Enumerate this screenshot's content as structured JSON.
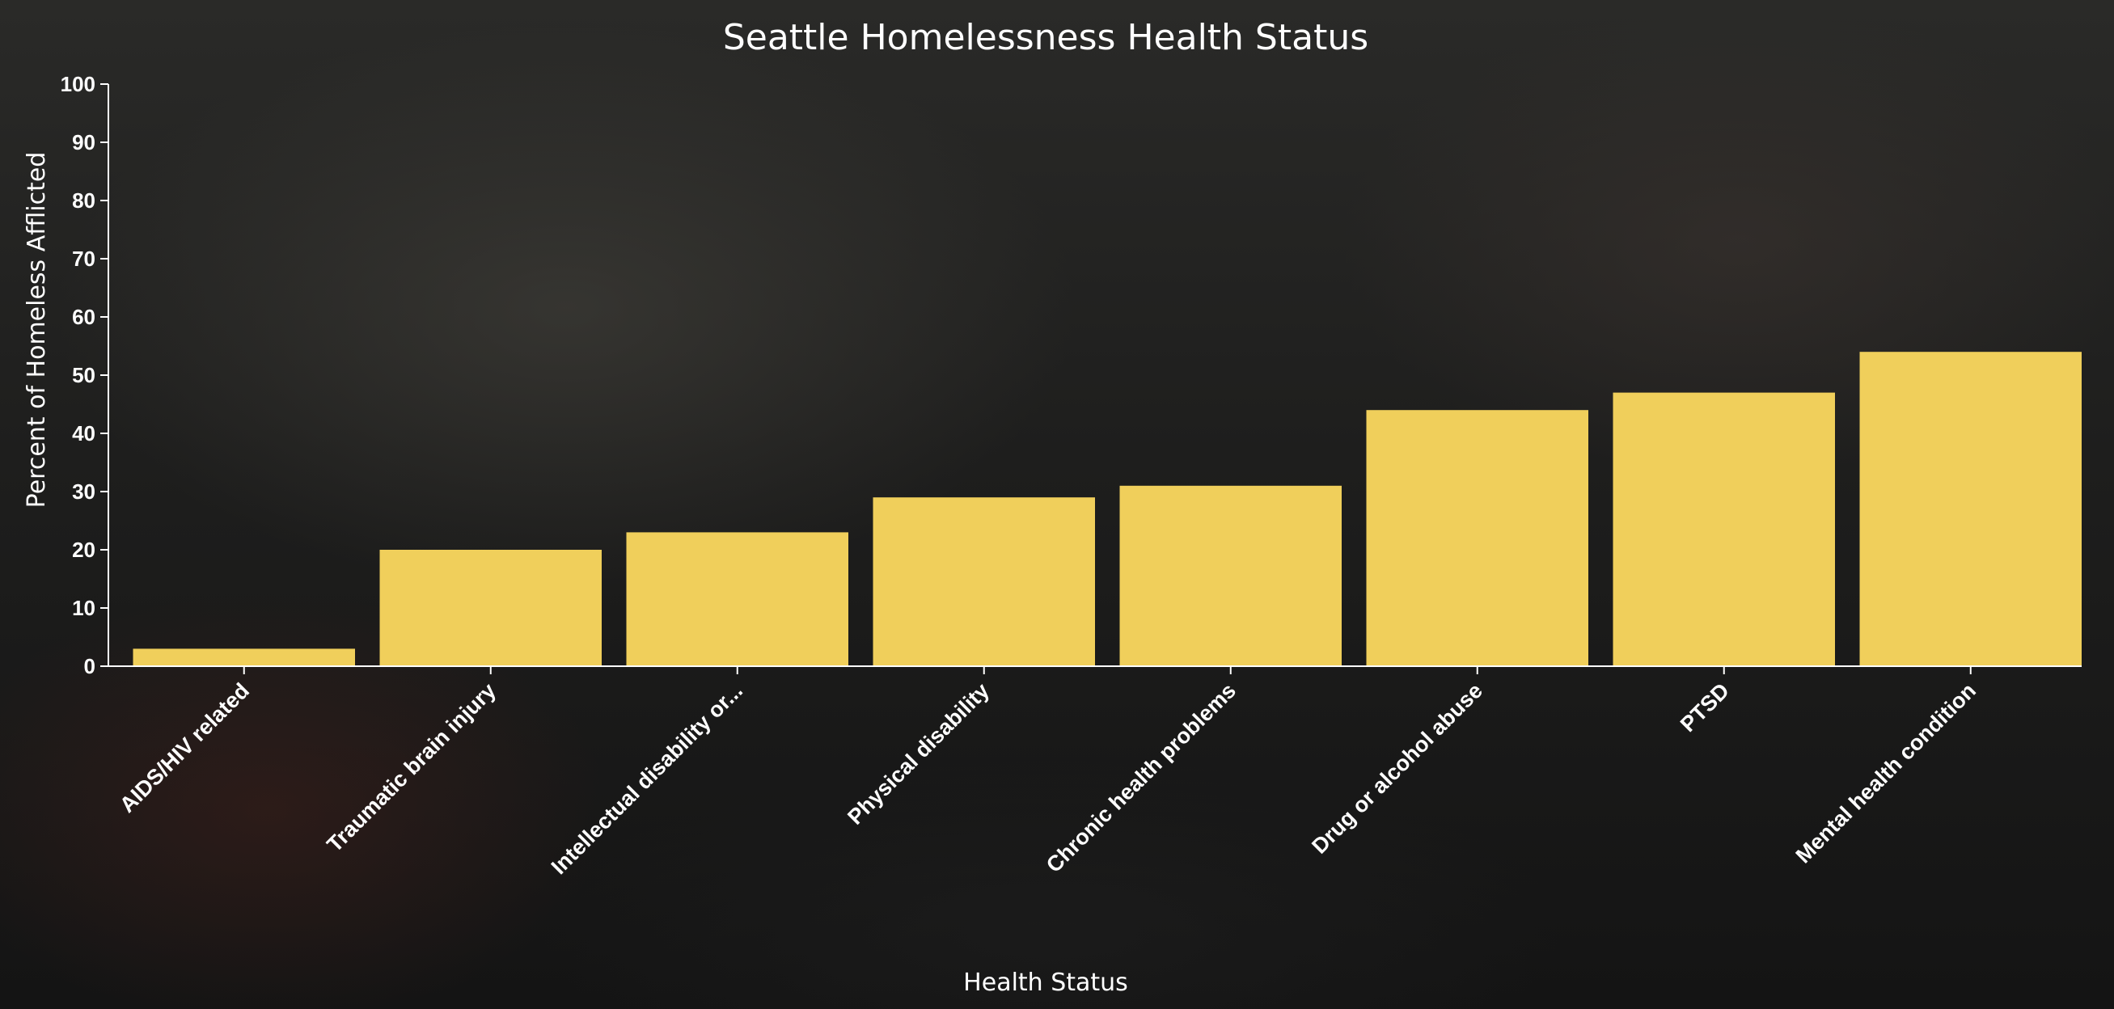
{
  "chart_data": {
    "type": "bar",
    "title": "Seattle Homelessness Health Status",
    "xlabel": "Health Status",
    "ylabel": "Percent of Homeless Afflicted",
    "ylim": [
      0,
      100
    ],
    "yticks": [
      "0",
      "10",
      "20",
      "30",
      "40",
      "50",
      "60",
      "70",
      "80",
      "90",
      "100"
    ],
    "categories": [
      "AIDS/HIV related",
      "Traumatic brain injury",
      "Intellectual disability or...",
      "Physical disability",
      "Chronic health problems",
      "Drug or alcohol abuse",
      "PTSD",
      "Mental health condition"
    ],
    "values": [
      3,
      20,
      23,
      29,
      31,
      44,
      47,
      54
    ],
    "bar_color": "#f0cf5b",
    "grid": false
  }
}
